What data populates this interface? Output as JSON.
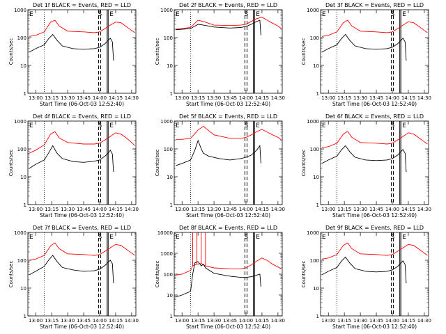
{
  "colors": {
    "events": "#000000",
    "lld": "#ff0000",
    "axis": "#000000",
    "background": "#ffffff"
  },
  "shared": {
    "ylabel": "Counts/sec",
    "xlabel": "Start Time (06-Oct-03 12:52:40)",
    "x_tick_labels": [
      "13:00",
      "13:15",
      "13:30",
      "13:45",
      "14:00",
      "14:15",
      "14:30"
    ],
    "y_tick_labels_small": [
      "1",
      "10",
      "100",
      "1000"
    ],
    "y_tick_labels_large": [
      "1",
      "10",
      "100",
      "1000",
      "10000"
    ],
    "marker_labels": [
      "E",
      "S",
      "E"
    ]
  },
  "chart_data": [
    {
      "type": "line",
      "title": "Det 1f BLACK = Events, RED = LLD",
      "xlabel": "Start Time (06-Oct-03 12:52:40)",
      "ylabel": "Counts/sec",
      "xlim": [
        "12:52:40",
        "14:34"
      ],
      "ylim": [
        1,
        1000
      ],
      "yscale": "log",
      "markers": {
        "dotted": "13:08",
        "dashed": [
          "13:59",
          "14:01"
        ],
        "solid": [
          "14:07",
          "14:08"
        ]
      },
      "series": [
        {
          "color": "red",
          "x": [
            "12:54",
            "13:00",
            "13:08",
            "13:14",
            "13:18",
            "13:22",
            "13:30",
            "13:45",
            "13:55",
            "14:00",
            "14:05",
            "14:10",
            "14:15",
            "14:20",
            "14:25",
            "14:30",
            "14:33"
          ],
          "y": [
            110,
            120,
            160,
            360,
            420,
            260,
            170,
            160,
            150,
            160,
            210,
            280,
            360,
            340,
            250,
            180,
            150
          ]
        },
        {
          "color": "black",
          "x": [
            "12:54",
            "13:00",
            "13:08",
            "13:12",
            "13:16",
            "13:20",
            "13:25",
            "13:35",
            "13:45",
            "13:55",
            "14:00",
            "14:05",
            "14:08",
            "14:10",
            "14:12",
            "14:13"
          ],
          "y": [
            30,
            40,
            55,
            90,
            130,
            80,
            50,
            40,
            38,
            40,
            45,
            60,
            80,
            95,
            70,
            15
          ]
        }
      ]
    },
    {
      "type": "line",
      "title": "Det 2f BLACK = Events, RED = LLD",
      "xlabel": "Start Time (06-Oct-03 12:52:40)",
      "ylabel": "Counts/sec",
      "xlim": [
        "12:52:40",
        "14:34"
      ],
      "ylim": [
        1,
        1000
      ],
      "yscale": "log",
      "markers": {
        "dotted": "13:08",
        "dashed": [
          "13:59",
          "14:01"
        ],
        "solid": [
          "14:07",
          "14:08"
        ]
      },
      "series": [
        {
          "color": "red",
          "x": [
            "12:54",
            "13:00",
            "13:08",
            "13:15",
            "13:20",
            "13:30",
            "13:45",
            "13:55",
            "14:00",
            "14:05",
            "14:10",
            "14:15",
            "14:20",
            "14:25",
            "14:30",
            "14:33"
          ],
          "y": [
            200,
            210,
            230,
            420,
            380,
            280,
            270,
            280,
            300,
            380,
            480,
            540,
            420,
            330,
            260,
            210
          ]
        },
        {
          "color": "black",
          "x": [
            "12:54",
            "13:00",
            "13:08",
            "13:15",
            "13:20",
            "13:30",
            "13:45",
            "13:55",
            "14:00",
            "14:05",
            "14:10",
            "14:13",
            "14:14"
          ],
          "y": [
            190,
            200,
            210,
            300,
            280,
            240,
            220,
            230,
            250,
            300,
            380,
            420,
            120
          ]
        }
      ]
    },
    {
      "type": "line",
      "title": "Det 3f BLACK = Events, RED = LLD",
      "xlabel": "Start Time (06-Oct-03 12:52:40)",
      "ylabel": "Counts/sec",
      "xlim": [
        "12:52:40",
        "14:34"
      ],
      "ylim": [
        1,
        1000
      ],
      "yscale": "log",
      "markers": {
        "dotted": "13:08",
        "dashed": [
          "13:59",
          "14:01"
        ],
        "solid": [
          "14:07",
          "14:08"
        ]
      },
      "series": [
        {
          "color": "red",
          "x": [
            "12:54",
            "13:00",
            "13:08",
            "13:14",
            "13:18",
            "13:22",
            "13:30",
            "13:45",
            "13:55",
            "14:00",
            "14:05",
            "14:10",
            "14:15",
            "14:20",
            "14:25",
            "14:30",
            "14:33"
          ],
          "y": [
            110,
            120,
            160,
            340,
            420,
            260,
            170,
            160,
            150,
            160,
            210,
            280,
            370,
            340,
            250,
            180,
            150
          ]
        },
        {
          "color": "black",
          "x": [
            "12:54",
            "13:00",
            "13:08",
            "13:12",
            "13:16",
            "13:20",
            "13:25",
            "13:35",
            "13:45",
            "13:55",
            "14:00",
            "14:05",
            "14:08",
            "14:10",
            "14:12",
            "14:13"
          ],
          "y": [
            30,
            40,
            55,
            90,
            130,
            80,
            50,
            40,
            38,
            40,
            45,
            60,
            80,
            95,
            70,
            15
          ]
        }
      ]
    },
    {
      "type": "line",
      "title": "Det 4f BLACK = Events, RED = LLD",
      "xlabel": "Start Time (06-Oct-03 12:52:40)",
      "ylabel": "Counts/sec",
      "xlim": [
        "12:52:40",
        "14:34"
      ],
      "ylim": [
        1,
        1000
      ],
      "yscale": "log",
      "markers": {
        "dotted": "13:08",
        "dashed": [
          "13:59",
          "14:01"
        ],
        "solid": [
          "14:07",
          "14:08"
        ]
      },
      "series": [
        {
          "color": "red",
          "x": [
            "12:54",
            "13:00",
            "13:08",
            "13:14",
            "13:18",
            "13:22",
            "13:30",
            "13:45",
            "13:55",
            "14:00",
            "14:05",
            "14:10",
            "14:15",
            "14:20",
            "14:25",
            "14:30",
            "14:33"
          ],
          "y": [
            70,
            90,
            140,
            340,
            420,
            250,
            170,
            150,
            150,
            160,
            210,
            280,
            380,
            340,
            250,
            170,
            130
          ]
        },
        {
          "color": "black",
          "x": [
            "12:54",
            "13:00",
            "13:08",
            "13:12",
            "13:16",
            "13:20",
            "13:25",
            "13:35",
            "13:45",
            "13:55",
            "14:00",
            "14:05",
            "14:08",
            "14:10",
            "14:12",
            "14:13"
          ],
          "y": [
            20,
            28,
            40,
            70,
            130,
            70,
            45,
            35,
            33,
            36,
            40,
            55,
            70,
            90,
            65,
            15
          ]
        }
      ]
    },
    {
      "type": "line",
      "title": "Det 5f BLACK = Events, RED = LLD",
      "xlabel": "Start Time (06-Oct-03 12:52:40)",
      "ylabel": "Counts/sec",
      "xlim": [
        "12:52:40",
        "14:34"
      ],
      "ylim": [
        1,
        1000
      ],
      "yscale": "log",
      "markers": {
        "dotted": "13:08",
        "dashed": [
          "13:59",
          "14:01"
        ],
        "solid": [
          "14:07",
          "14:08"
        ]
      },
      "series": [
        {
          "color": "red",
          "x": [
            "12:54",
            "13:00",
            "13:08",
            "13:15",
            "13:20",
            "13:30",
            "13:45",
            "13:55",
            "14:00",
            "14:05",
            "14:10",
            "14:15",
            "14:20",
            "14:25",
            "14:30",
            "14:33"
          ],
          "y": [
            220,
            220,
            240,
            480,
            650,
            320,
            240,
            240,
            260,
            320,
            420,
            500,
            400,
            320,
            260,
            210
          ]
        },
        {
          "color": "black",
          "x": [
            "12:54",
            "13:00",
            "13:08",
            "13:12",
            "13:15",
            "13:18",
            "13:20",
            "13:25",
            "13:35",
            "13:45",
            "13:55",
            "14:00",
            "14:05",
            "14:10",
            "14:13",
            "14:14"
          ],
          "y": [
            25,
            30,
            40,
            90,
            200,
            100,
            70,
            55,
            45,
            40,
            45,
            50,
            60,
            90,
            130,
            30
          ]
        }
      ]
    },
    {
      "type": "line",
      "title": "Det 6f BLACK = Events, RED = LLD",
      "xlabel": "Start Time (06-Oct-03 12:52:40)",
      "ylabel": "Counts/sec",
      "xlim": [
        "12:52:40",
        "14:34"
      ],
      "ylim": [
        1,
        1000
      ],
      "yscale": "log",
      "markers": {
        "dotted": "13:08",
        "dashed": [
          "13:59",
          "14:01"
        ],
        "solid": [
          "14:07",
          "14:08"
        ]
      },
      "series": [
        {
          "color": "red",
          "x": [
            "12:54",
            "13:00",
            "13:08",
            "13:14",
            "13:18",
            "13:22",
            "13:30",
            "13:45",
            "13:55",
            "14:00",
            "14:05",
            "14:10",
            "14:15",
            "14:20",
            "14:25",
            "14:30",
            "14:33"
          ],
          "y": [
            110,
            120,
            160,
            340,
            430,
            260,
            170,
            160,
            150,
            160,
            210,
            280,
            380,
            340,
            250,
            180,
            150
          ]
        },
        {
          "color": "black",
          "x": [
            "12:54",
            "13:00",
            "13:08",
            "13:12",
            "13:16",
            "13:20",
            "13:25",
            "13:35",
            "13:45",
            "13:55",
            "14:00",
            "14:05",
            "14:08",
            "14:10",
            "14:12",
            "14:13"
          ],
          "y": [
            30,
            40,
            55,
            90,
            130,
            80,
            50,
            40,
            38,
            40,
            45,
            60,
            80,
            95,
            70,
            15
          ]
        }
      ]
    },
    {
      "type": "line",
      "title": "Det 7f BLACK = Events, RED = LLD",
      "xlabel": "Start Time (06-Oct-03 12:52:40)",
      "ylabel": "Counts/sec",
      "xlim": [
        "12:52:40",
        "14:34"
      ],
      "ylim": [
        1,
        1000
      ],
      "yscale": "log",
      "markers": {
        "dotted": "13:08",
        "dashed": [
          "13:59",
          "14:01"
        ],
        "solid": [
          "14:07",
          "14:08"
        ]
      },
      "series": [
        {
          "color": "red",
          "x": [
            "12:54",
            "13:00",
            "13:08",
            "13:14",
            "13:18",
            "13:22",
            "13:30",
            "13:45",
            "13:55",
            "14:00",
            "14:05",
            "14:10",
            "14:15",
            "14:20",
            "14:25",
            "14:30",
            "14:33"
          ],
          "y": [
            100,
            110,
            150,
            330,
            420,
            260,
            170,
            160,
            150,
            160,
            210,
            280,
            370,
            340,
            250,
            180,
            150
          ]
        },
        {
          "color": "black",
          "x": [
            "12:54",
            "13:00",
            "13:08",
            "13:12",
            "13:16",
            "13:20",
            "13:25",
            "13:35",
            "13:45",
            "13:55",
            "14:00",
            "14:05",
            "14:08",
            "14:10",
            "14:12",
            "14:13"
          ],
          "y": [
            30,
            40,
            60,
            100,
            150,
            90,
            55,
            45,
            40,
            42,
            48,
            65,
            85,
            100,
            75,
            15
          ]
        }
      ]
    },
    {
      "type": "line",
      "title": "Det 8f BLACK = Events, RED = LLD",
      "xlabel": "Start Time (06-Oct-03 12:52:40)",
      "ylabel": "Counts/sec",
      "xlim": [
        "12:52:40",
        "14:34"
      ],
      "ylim": [
        1,
        10000
      ],
      "yscale": "log",
      "markers": {
        "dotted": "13:08",
        "dashed": [
          "13:59",
          "14:01"
        ],
        "solid": [
          "14:07",
          "14:08"
        ]
      },
      "series": [
        {
          "color": "red",
          "x": [
            "12:54",
            "13:00",
            "13:08",
            "13:10",
            "13:10",
            "13:10",
            "13:14",
            "13:14",
            "13:14",
            "13:18",
            "13:18",
            "13:18",
            "13:22",
            "13:22",
            "13:22",
            "13:30",
            "13:45",
            "13:55",
            "14:00",
            "14:05",
            "14:10",
            "14:15",
            "14:20",
            "14:25",
            "14:30",
            "14:33"
          ],
          "y": [
            90,
            100,
            150,
            250,
            10000,
            250,
            300,
            10000,
            300,
            320,
            10000,
            320,
            250,
            10000,
            250,
            200,
            180,
            180,
            200,
            280,
            420,
            600,
            450,
            300,
            220,
            180
          ]
        },
        {
          "color": "black",
          "x": [
            "12:54",
            "13:00",
            "13:08",
            "13:10",
            "13:12",
            "13:15",
            "13:18",
            "13:20",
            "13:22",
            "13:30",
            "13:45",
            "13:55",
            "14:00",
            "14:05",
            "14:10",
            "14:13",
            "14:14"
          ],
          "y": [
            8,
            10,
            15,
            100,
            350,
            400,
            250,
            300,
            200,
            110,
            80,
            70,
            70,
            75,
            90,
            100,
            25
          ]
        }
      ]
    },
    {
      "type": "line",
      "title": "Det 9f BLACK = Events, RED = LLD",
      "xlabel": "Start Time (06-Oct-03 12:52:40)",
      "ylabel": "Counts/sec",
      "xlim": [
        "12:52:40",
        "14:34"
      ],
      "ylim": [
        1,
        1000
      ],
      "yscale": "log",
      "markers": {
        "dotted": "13:08",
        "dashed": [
          "13:59",
          "14:01"
        ],
        "solid": [
          "14:07",
          "14:08"
        ]
      },
      "series": [
        {
          "color": "red",
          "x": [
            "12:54",
            "13:00",
            "13:08",
            "13:14",
            "13:18",
            "13:22",
            "13:30",
            "13:45",
            "13:55",
            "14:00",
            "14:05",
            "14:10",
            "14:15",
            "14:20",
            "14:25",
            "14:30",
            "14:33"
          ],
          "y": [
            110,
            120,
            160,
            340,
            420,
            260,
            170,
            160,
            150,
            160,
            210,
            280,
            370,
            340,
            250,
            180,
            150
          ]
        },
        {
          "color": "black",
          "x": [
            "12:54",
            "13:00",
            "13:08",
            "13:12",
            "13:16",
            "13:20",
            "13:25",
            "13:35",
            "13:45",
            "13:55",
            "14:00",
            "14:05",
            "14:08",
            "14:10",
            "14:12",
            "14:13"
          ],
          "y": [
            30,
            40,
            55,
            90,
            130,
            80,
            50,
            40,
            38,
            40,
            45,
            60,
            80,
            95,
            70,
            15
          ]
        }
      ]
    }
  ]
}
